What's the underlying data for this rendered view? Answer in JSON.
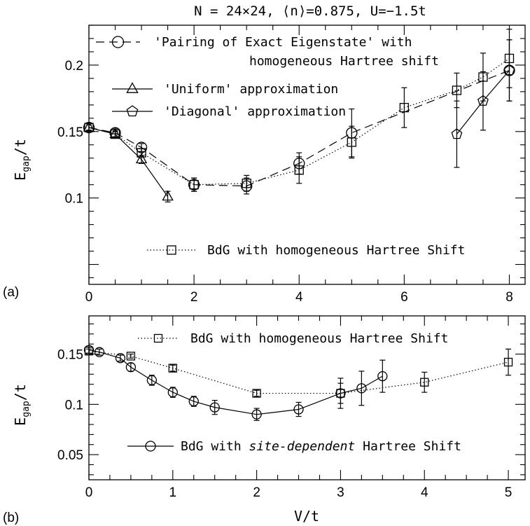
{
  "chart_data": [
    {
      "panel": "(a)",
      "type": "line",
      "title": "N = 24×24, ⟨n⟩=0.875, U=−1.5t",
      "xlabel": "",
      "ylabel": "E_gap/t",
      "xlim": [
        0,
        8.3
      ],
      "ylim": [
        0.035,
        0.23
      ],
      "xticks": [
        0,
        2,
        4,
        6,
        8
      ],
      "yticks": [
        0.1,
        0.15,
        0.2
      ],
      "series": [
        {
          "name": "'Pairing of Exact Eigenstate' with homogeneous Hartree shift",
          "marker": "circle",
          "line": "dashed",
          "x": [
            0,
            0.5,
            1,
            2,
            3,
            4,
            5,
            8
          ],
          "y": [
            0.153,
            0.149,
            0.138,
            0.11,
            0.109,
            0.126,
            0.149,
            0.196
          ],
          "err": [
            0.003,
            0.003,
            0.003,
            0.005,
            0.006,
            0.008,
            0.018,
            0.023
          ]
        },
        {
          "name": "'Uniform' approximation",
          "marker": "triangle",
          "line": "solid",
          "x": [
            0,
            0.5,
            1,
            1.5
          ],
          "y": [
            0.153,
            0.148,
            0.129,
            0.101
          ],
          "err": [
            0.002,
            0.002,
            0.003,
            0.004
          ]
        },
        {
          "name": "'Diagonal' approximation",
          "marker": "pentagon",
          "line": "solid",
          "x": [
            7,
            7.5,
            8
          ],
          "y": [
            0.148,
            0.173,
            0.196
          ],
          "err": [
            0.025,
            0.022,
            0.023
          ]
        },
        {
          "name": "BdG with homogeneous Hartree Shift",
          "marker": "square",
          "line": "dotted",
          "x": [
            0,
            0.5,
            1,
            2,
            3,
            4,
            5,
            6,
            7,
            7.5,
            8
          ],
          "y": [
            0.153,
            0.148,
            0.134,
            0.11,
            0.111,
            0.121,
            0.142,
            0.168,
            0.181,
            0.191,
            0.205
          ],
          "err": [
            0.002,
            0.002,
            0.003,
            0.005,
            0.006,
            0.01,
            0.012,
            0.015,
            0.013,
            0.018,
            0.022
          ]
        }
      ],
      "legend": [
        {
          "series": 0,
          "lines": [
            "'Pairing of Exact Eigenstate' with",
            "homogeneous Hartree shift"
          ]
        },
        {
          "series": 1,
          "lines": [
            "'Uniform' approximation"
          ]
        },
        {
          "series": 2,
          "lines": [
            "'Diagonal' approximation"
          ]
        },
        {
          "series": 3,
          "lines": [
            "BdG with homogeneous Hartree Shift"
          ]
        }
      ]
    },
    {
      "panel": "(b)",
      "type": "line",
      "title": "",
      "xlabel": "V/t",
      "ylabel": "E_gap/t",
      "xlim": [
        0,
        5.2
      ],
      "ylim": [
        0.025,
        0.188
      ],
      "xticks": [
        0,
        1,
        2,
        3,
        4,
        5
      ],
      "yticks": [
        0.05,
        0.1,
        0.15
      ],
      "series": [
        {
          "name": "BdG with homogeneous Hartree Shift",
          "marker": "square",
          "line": "dotted",
          "x": [
            0,
            0.5,
            1,
            2,
            3,
            4,
            5
          ],
          "y": [
            0.153,
            0.148,
            0.136,
            0.111,
            0.111,
            0.122,
            0.142
          ],
          "err": [
            0.002,
            0.002,
            0.003,
            0.003,
            0.015,
            0.01,
            0.013
          ]
        },
        {
          "name": "BdG with site-dependent Hartree Shift",
          "marker": "circle",
          "line": "solid",
          "x": [
            0,
            0.125,
            0.375,
            0.5,
            0.75,
            1,
            1.25,
            1.5,
            2,
            2.5,
            3,
            3.25,
            3.5
          ],
          "y": [
            0.154,
            0.152,
            0.146,
            0.137,
            0.124,
            0.112,
            0.103,
            0.097,
            0.09,
            0.095,
            0.111,
            0.116,
            0.128
          ],
          "err": [
            0.003,
            0.003,
            0.003,
            0.004,
            0.005,
            0.005,
            0.005,
            0.007,
            0.006,
            0.007,
            0.01,
            0.017,
            0.016
          ]
        }
      ],
      "legend": [
        {
          "series": 0,
          "lines": [
            "BdG with homogeneous Hartree Shift"
          ]
        },
        {
          "series": 1,
          "lines": [
            "BdG with site-dependent Hartree Shift"
          ]
        }
      ]
    }
  ]
}
